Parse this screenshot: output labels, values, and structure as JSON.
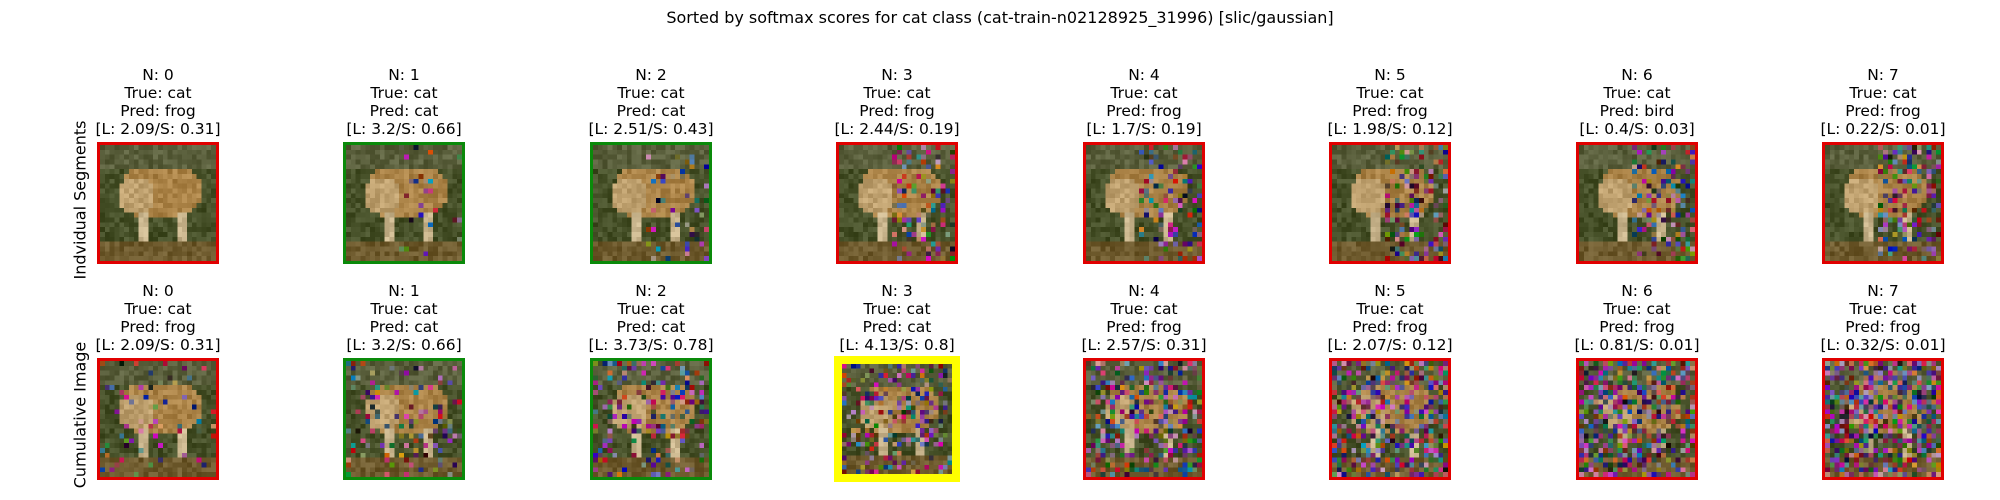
{
  "title": "Sorted by softmax scores for cat class (cat-train-n02128925_31996) [slic/gaussian]",
  "row_labels": [
    "Indvidual Segments",
    "Cumulative Image"
  ],
  "border_colors": {
    "correct": "#0a8a0a",
    "wrong": "#e00000",
    "best": "#ffff00"
  },
  "rows": [
    {
      "panels": [
        {
          "n": "N: 0",
          "true": "True: cat",
          "pred": "Pred: frog",
          "scores": "[L: 2.09/S: 0.31]",
          "status": "wrong"
        },
        {
          "n": "N: 1",
          "true": "True: cat",
          "pred": "Pred: cat",
          "scores": "[L: 3.2/S: 0.66]",
          "status": "correct"
        },
        {
          "n": "N: 2",
          "true": "True: cat",
          "pred": "Pred: cat",
          "scores": "[L: 2.51/S: 0.43]",
          "status": "correct"
        },
        {
          "n": "N: 3",
          "true": "True: cat",
          "pred": "Pred: frog",
          "scores": "[L: 2.44/S: 0.19]",
          "status": "wrong"
        },
        {
          "n": "N: 4",
          "true": "True: cat",
          "pred": "Pred: frog",
          "scores": "[L: 1.7/S: 0.19]",
          "status": "wrong"
        },
        {
          "n": "N: 5",
          "true": "True: cat",
          "pred": "Pred: frog",
          "scores": "[L: 1.98/S: 0.12]",
          "status": "wrong"
        },
        {
          "n": "N: 6",
          "true": "True: cat",
          "pred": "Pred: bird",
          "scores": "[L: 0.4/S: 0.03]",
          "status": "wrong"
        },
        {
          "n": "N: 7",
          "true": "True: cat",
          "pred": "Pred: frog",
          "scores": "[L: 0.22/S: 0.01]",
          "status": "wrong"
        }
      ]
    },
    {
      "panels": [
        {
          "n": "N: 0",
          "true": "True: cat",
          "pred": "Pred: frog",
          "scores": "[L: 2.09/S: 0.31]",
          "status": "wrong"
        },
        {
          "n": "N: 1",
          "true": "True: cat",
          "pred": "Pred: cat",
          "scores": "[L: 3.2/S: 0.66]",
          "status": "correct"
        },
        {
          "n": "N: 2",
          "true": "True: cat",
          "pred": "Pred: cat",
          "scores": "[L: 3.73/S: 0.78]",
          "status": "correct"
        },
        {
          "n": "N: 3",
          "true": "True: cat",
          "pred": "Pred: cat",
          "scores": "[L: 4.13/S: 0.8]",
          "status": "best"
        },
        {
          "n": "N: 4",
          "true": "True: cat",
          "pred": "Pred: frog",
          "scores": "[L: 2.57/S: 0.31]",
          "status": "wrong"
        },
        {
          "n": "N: 5",
          "true": "True: cat",
          "pred": "Pred: frog",
          "scores": "[L: 2.07/S: 0.12]",
          "status": "wrong"
        },
        {
          "n": "N: 6",
          "true": "True: cat",
          "pred": "Pred: frog",
          "scores": "[L: 0.81/S: 0.01]",
          "status": "wrong"
        },
        {
          "n": "N: 7",
          "true": "True: cat",
          "pred": "Pred: frog",
          "scores": "[L: 0.32/S: 0.01]",
          "status": "wrong"
        }
      ]
    }
  ]
}
